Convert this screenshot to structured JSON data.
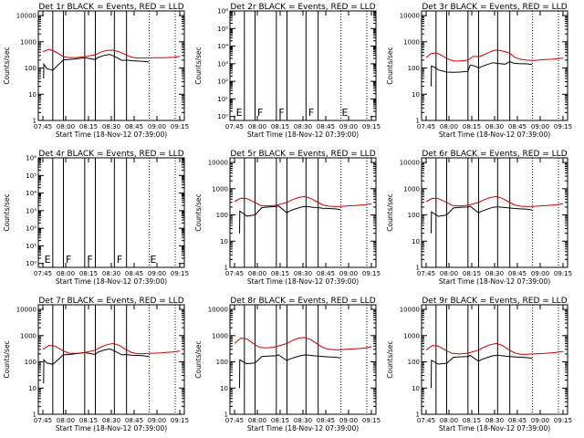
{
  "chart_data": {
    "type": "line",
    "xaxis": {
      "tick_labels": [
        "07:45",
        "08:00",
        "08:15",
        "08:30",
        "08:45",
        "09:00",
        "09:15"
      ],
      "tick_minutes": [
        0,
        15,
        30,
        45,
        60,
        75,
        90
      ],
      "xlim_minutes": [
        -3,
        93
      ],
      "xlabel": "Start Time (18-Nov-12 07:39:00)"
    },
    "ylabel": "Counts/sec",
    "yscale": "log",
    "legend_text": "BLACK = Events, RED = LLD",
    "series_colors": {
      "events": "#000000",
      "lld": "#cc0000"
    },
    "vertical_solid_lines_minutes": [
      6.5,
      13.5,
      27.5,
      34.5,
      47,
      55
    ],
    "vertical_dotted_lines_minutes": [
      70,
      87
    ],
    "panels": [
      {
        "title": "Det 1r",
        "ylim": [
          1,
          15000
        ],
        "yticks": [
          {
            "v": 1,
            "label": "1"
          },
          {
            "v": 10,
            "label": "10"
          },
          {
            "v": 100,
            "label": "100"
          },
          {
            "v": 1000,
            "label": "1000"
          },
          {
            "v": 10000,
            "label": "10000"
          }
        ],
        "event_markers": [],
        "series": [
          {
            "name": "events",
            "x": [
              0.5,
              0.6,
              2.5,
              6.5,
              13.5,
              17,
              20.6,
              25,
              27.5,
              34.5,
              36,
              40,
              44,
              47,
              52,
              55,
              58,
              62,
              66,
              69.7
            ],
            "y": [
              40,
              140,
              95,
              82,
              205,
              210,
              220,
              235,
              245,
              210,
              250,
              300,
              330,
              280,
              195,
              200,
              190,
              185,
              180,
              170
            ]
          },
          {
            "name": "lld",
            "x": [
              0,
              4,
              8,
              13.5,
              17,
              22,
              27.5,
              34.5,
              38,
              42,
              46,
              50,
              54,
              58,
              62,
              66,
              70,
              74,
              78,
              82,
              86,
              90
            ],
            "y": [
              420,
              520,
              420,
              270,
              250,
              250,
              270,
              320,
              400,
              470,
              480,
              420,
              330,
              260,
              240,
              240,
              240,
              245,
              245,
              250,
              255,
              280
            ]
          }
        ]
      },
      {
        "title": "Det 2r",
        "ylim": [
          0.6,
          1000000
        ],
        "yticks": [
          {
            "v": 1,
            "label": "10⁰"
          },
          {
            "v": 10,
            "label": "10¹"
          },
          {
            "v": 100,
            "label": "10²"
          },
          {
            "v": 1000,
            "label": "10³"
          },
          {
            "v": 10000,
            "label": "10⁴"
          },
          {
            "v": 100000,
            "label": "10⁵"
          },
          {
            "v": 1000000,
            "label": "10⁶"
          }
        ],
        "event_markers": [
          {
            "label": "E",
            "x_minutes": 1,
            "y": 1.1
          },
          {
            "label": "F",
            "x_minutes": 15,
            "y": 1.1
          },
          {
            "label": "F",
            "x_minutes": 29,
            "y": 1.1
          },
          {
            "label": "F",
            "x_minutes": 48.5,
            "y": 1.1
          },
          {
            "label": "E",
            "x_minutes": 70.5,
            "y": 1.1
          }
        ],
        "series": []
      },
      {
        "title": "Det 3r",
        "ylim": [
          1,
          15000
        ],
        "yticks": [
          {
            "v": 1,
            "label": "1"
          },
          {
            "v": 10,
            "label": "10"
          },
          {
            "v": 100,
            "label": "100"
          },
          {
            "v": 1000,
            "label": "1000"
          },
          {
            "v": 10000,
            "label": "10000"
          }
        ],
        "event_markers": [],
        "series": [
          {
            "name": "events",
            "x": [
              3.3,
              3.5,
              6.5,
              8,
              13.5,
              18,
              22,
              27.5,
              29,
              32,
              34.5,
              36,
              40,
              44,
              47,
              52,
              55,
              58,
              62,
              66,
              69.7
            ],
            "y": [
              20,
              120,
              100,
              85,
              70,
              68,
              70,
              75,
              130,
              120,
              100,
              110,
              135,
              160,
              150,
              140,
              175,
              150,
              145,
              145,
              135
            ]
          },
          {
            "name": "lld",
            "x": [
              0,
              3,
              6.5,
              10,
              13.5,
              18,
              22,
              27.5,
              31,
              34.5,
              38,
              42,
              45,
              48,
              52,
              55,
              58,
              62,
              66,
              70,
              74,
              78,
              82,
              86,
              90
            ],
            "y": [
              250,
              350,
              380,
              310,
              230,
              185,
              185,
              200,
              280,
              270,
              320,
              410,
              480,
              470,
              420,
              360,
              260,
              215,
              200,
              195,
              200,
              210,
              215,
              225,
              240
            ]
          }
        ]
      },
      {
        "title": "Det 4r",
        "ylim": [
          0.6,
          1000000
        ],
        "yticks": [
          {
            "v": 1,
            "label": "10⁰"
          },
          {
            "v": 10,
            "label": "10¹"
          },
          {
            "v": 100,
            "label": "10²"
          },
          {
            "v": 1000,
            "label": "10³"
          },
          {
            "v": 10000,
            "label": "10⁴"
          },
          {
            "v": 100000,
            "label": "10⁵"
          },
          {
            "v": 1000000,
            "label": "10⁶"
          }
        ],
        "event_markers": [
          {
            "label": "E",
            "x_minutes": 1,
            "y": 1.1
          },
          {
            "label": "F",
            "x_minutes": 15,
            "y": 1.1
          },
          {
            "label": "F",
            "x_minutes": 29,
            "y": 1.1
          },
          {
            "label": "F",
            "x_minutes": 48.5,
            "y": 1.1
          },
          {
            "label": "E",
            "x_minutes": 70.5,
            "y": 1.1
          }
        ],
        "series": []
      },
      {
        "title": "Det 5r",
        "ylim": [
          1,
          15000
        ],
        "yticks": [
          {
            "v": 1,
            "label": "1"
          },
          {
            "v": 10,
            "label": "10"
          },
          {
            "v": 100,
            "label": "100"
          },
          {
            "v": 1000,
            "label": "1000"
          },
          {
            "v": 10000,
            "label": "10000"
          }
        ],
        "event_markers": [],
        "series": [
          {
            "name": "events",
            "x": [
              3.3,
              3.5,
              6.5,
              8,
              13.5,
              18,
              22,
              27.5,
              29,
              34.5,
              36,
              40,
              44,
              47,
              52,
              55,
              58,
              62,
              66,
              69.7
            ],
            "y": [
              20,
              140,
              105,
              90,
              100,
              190,
              200,
              210,
              220,
              120,
              140,
              170,
              200,
              210,
              195,
              190,
              180,
              175,
              170,
              160
            ]
          },
          {
            "name": "lld",
            "x": [
              0,
              4,
              8,
              13.5,
              17,
              22,
              27.5,
              34.5,
              38,
              42,
              46,
              50,
              54,
              58,
              62,
              66,
              70,
              74,
              78,
              82,
              86,
              90
            ],
            "y": [
              320,
              430,
              420,
              300,
              230,
              220,
              235,
              300,
              380,
              460,
              500,
              430,
              320,
              240,
              215,
              210,
              210,
              220,
              225,
              235,
              245,
              265
            ]
          }
        ]
      },
      {
        "title": "Det 6r",
        "ylim": [
          1,
          15000
        ],
        "yticks": [
          {
            "v": 1,
            "label": "1"
          },
          {
            "v": 10,
            "label": "10"
          },
          {
            "v": 100,
            "label": "100"
          },
          {
            "v": 1000,
            "label": "1000"
          },
          {
            "v": 10000,
            "label": "10000"
          }
        ],
        "event_markers": [],
        "series": [
          {
            "name": "events",
            "x": [
              3.3,
              3.5,
              6.5,
              8,
              13.5,
              18,
              22,
              27.5,
              29,
              34.5,
              36,
              40,
              44,
              47,
              52,
              55,
              58,
              62,
              66,
              69.7
            ],
            "y": [
              20,
              130,
              100,
              88,
              100,
              185,
              195,
              200,
              215,
              120,
              135,
              165,
              195,
              205,
              190,
              185,
              175,
              170,
              165,
              155
            ]
          },
          {
            "name": "lld",
            "x": [
              0,
              4,
              8,
              13.5,
              17,
              22,
              27.5,
              34.5,
              38,
              42,
              46,
              50,
              54,
              58,
              62,
              66,
              70,
              74,
              78,
              82,
              86,
              90
            ],
            "y": [
              320,
              430,
              420,
              300,
              230,
              220,
              235,
              300,
              380,
              460,
              500,
              430,
              320,
              240,
              215,
              210,
              210,
              220,
              225,
              235,
              245,
              265
            ]
          }
        ]
      },
      {
        "title": "Det 7r",
        "ylim": [
          1,
          15000
        ],
        "yticks": [
          {
            "v": 1,
            "label": "1"
          },
          {
            "v": 10,
            "label": "10"
          },
          {
            "v": 100,
            "label": "100"
          },
          {
            "v": 1000,
            "label": "1000"
          },
          {
            "v": 10000,
            "label": "10000"
          }
        ],
        "event_markers": [],
        "series": [
          {
            "name": "events",
            "x": [
              0.5,
              0.6,
              2.5,
              6.5,
              13.5,
              17,
              20.6,
              25,
              27.5,
              34.5,
              36,
              40,
              44,
              47,
              52,
              55,
              58,
              62,
              66,
              69.7
            ],
            "y": [
              15,
              120,
              90,
              80,
              185,
              190,
              200,
              215,
              225,
              190,
              230,
              280,
              310,
              260,
              185,
              190,
              180,
              175,
              170,
              160
            ]
          },
          {
            "name": "lld",
            "x": [
              0,
              4,
              8,
              13.5,
              17,
              22,
              27.5,
              34.5,
              38,
              42,
              46,
              50,
              54,
              58,
              62,
              66,
              70,
              74,
              78,
              82,
              86,
              90
            ],
            "y": [
              300,
              420,
              400,
              260,
              215,
              210,
              225,
              280,
              360,
              450,
              500,
              430,
              310,
              230,
              205,
              205,
              210,
              215,
              220,
              230,
              240,
              260
            ]
          }
        ]
      },
      {
        "title": "Det 8r",
        "ylim": [
          1,
          15000
        ],
        "yticks": [
          {
            "v": 1,
            "label": "1"
          },
          {
            "v": 10,
            "label": "10"
          },
          {
            "v": 100,
            "label": "100"
          },
          {
            "v": 1000,
            "label": "1000"
          },
          {
            "v": 10000,
            "label": "10000"
          }
        ],
        "event_markers": [],
        "series": [
          {
            "name": "events",
            "x": [
              3.3,
              3.5,
              6.5,
              8,
              13.5,
              18,
              22,
              27.5,
              29,
              34.5,
              36,
              40,
              44,
              47,
              52,
              55,
              58,
              62,
              66,
              69.7
            ],
            "y": [
              10,
              120,
              95,
              85,
              90,
              160,
              165,
              170,
              185,
              110,
              125,
              150,
              175,
              185,
              170,
              165,
              160,
              155,
              150,
              140
            ]
          },
          {
            "name": "lld",
            "x": [
              0,
              4,
              8,
              13.5,
              17,
              22,
              27.5,
              34.5,
              38,
              42,
              46,
              50,
              54,
              58,
              62,
              66,
              70,
              74,
              78,
              82,
              86,
              90
            ],
            "y": [
              500,
              800,
              750,
              450,
              350,
              340,
              380,
              500,
              650,
              800,
              850,
              720,
              500,
              350,
              300,
              290,
              290,
              300,
              310,
              320,
              340,
              380
            ]
          }
        ]
      },
      {
        "title": "Det 9r",
        "ylim": [
          1,
          15000
        ],
        "yticks": [
          {
            "v": 1,
            "label": "1"
          },
          {
            "v": 10,
            "label": "10"
          },
          {
            "v": 100,
            "label": "100"
          },
          {
            "v": 1000,
            "label": "1000"
          },
          {
            "v": 10000,
            "label": "10000"
          }
        ],
        "event_markers": [],
        "series": [
          {
            "name": "events",
            "x": [
              3.3,
              3.5,
              6.5,
              8,
              13.5,
              18,
              22,
              27.5,
              29,
              34.5,
              36,
              40,
              44,
              47,
              52,
              55,
              58,
              62,
              66,
              69.7
            ],
            "y": [
              10,
              115,
              92,
              82,
              88,
              150,
              155,
              160,
              175,
              105,
              120,
              145,
              170,
              180,
              165,
              160,
              155,
              150,
              145,
              135
            ]
          },
          {
            "name": "lld",
            "x": [
              0,
              4,
              8,
              13.5,
              17,
              22,
              27.5,
              34.5,
              38,
              42,
              46,
              50,
              54,
              58,
              62,
              66,
              70,
              74,
              78,
              82,
              86,
              90
            ],
            "y": [
              280,
              420,
              400,
              260,
              210,
              200,
              215,
              280,
              360,
              450,
              500,
              430,
              300,
              220,
              195,
              195,
              200,
              205,
              210,
              220,
              230,
              250
            ]
          }
        ]
      }
    ]
  }
}
